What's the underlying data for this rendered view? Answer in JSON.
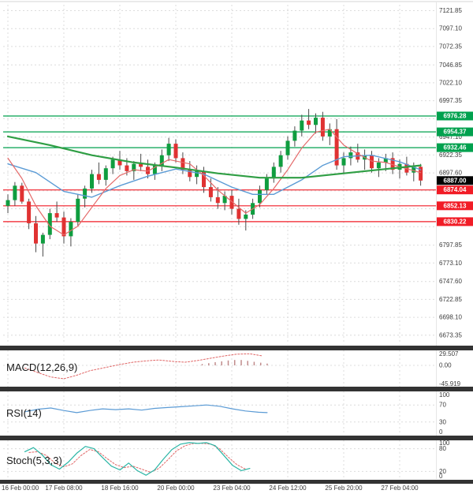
{
  "chart_data": {
    "type": "candlestick",
    "ylim": [
      6660,
      7130
    ],
    "price_ticks": [
      "7121.85",
      "7097.10",
      "7072.35",
      "7046.85",
      "7022.10",
      "6997.35",
      "6972.60",
      "6947.10",
      "6922.35",
      "6897.60",
      "6872.85",
      "6848.10",
      "6823.35",
      "6797.85",
      "6773.10",
      "6747.60",
      "6722.85",
      "6698.10",
      "6673.35"
    ],
    "x_labels": [
      "16 Feb 00:00",
      "17 Feb 08:00",
      "18 Feb 16:00",
      "20 Feb 00:00",
      "23 Feb 04:00",
      "24 Feb 12:00",
      "25 Feb 20:00",
      "27 Feb 04:00"
    ],
    "x_tick_indices": [
      0,
      8,
      16,
      24,
      32,
      40,
      48,
      56
    ],
    "levels": {
      "resistance": [
        "6976.28",
        "6954.37",
        "6932.46"
      ],
      "support": [
        "6874.04",
        "6852.13",
        "6830.22"
      ],
      "last_price": "6887.00"
    },
    "candles": [
      [
        6852,
        6868,
        6842,
        6860
      ],
      [
        6860,
        6885,
        6852,
        6880
      ],
      [
        6880,
        6884,
        6855,
        6858
      ],
      [
        6858,
        6862,
        6820,
        6828
      ],
      [
        6828,
        6838,
        6788,
        6800
      ],
      [
        6800,
        6815,
        6782,
        6812
      ],
      [
        6812,
        6848,
        6806,
        6842
      ],
      [
        6842,
        6858,
        6830,
        6836
      ],
      [
        6836,
        6844,
        6800,
        6810
      ],
      [
        6810,
        6835,
        6796,
        6830
      ],
      [
        6830,
        6868,
        6824,
        6862
      ],
      [
        6862,
        6880,
        6850,
        6876
      ],
      [
        6876,
        6902,
        6870,
        6896
      ],
      [
        6896,
        6912,
        6882,
        6888
      ],
      [
        6888,
        6908,
        6880,
        6904
      ],
      [
        6904,
        6920,
        6896,
        6916
      ],
      [
        6916,
        6928,
        6902,
        6908
      ],
      [
        6908,
        6918,
        6894,
        6900
      ],
      [
        6900,
        6914,
        6888,
        6910
      ],
      [
        6910,
        6924,
        6900,
        6906
      ],
      [
        6906,
        6916,
        6890,
        6896
      ],
      [
        6896,
        6912,
        6888,
        6908
      ],
      [
        6908,
        6930,
        6900,
        6922
      ],
      [
        6922,
        6946,
        6914,
        6938
      ],
      [
        6938,
        6944,
        6912,
        6918
      ],
      [
        6918,
        6926,
        6896,
        6902
      ],
      [
        6902,
        6914,
        6886,
        6892
      ],
      [
        6892,
        6908,
        6882,
        6900
      ],
      [
        6900,
        6906,
        6870,
        6878
      ],
      [
        6878,
        6890,
        6858,
        6864
      ],
      [
        6864,
        6878,
        6848,
        6856
      ],
      [
        6856,
        6872,
        6846,
        6866
      ],
      [
        6866,
        6874,
        6840,
        6848
      ],
      [
        6848,
        6862,
        6826,
        6834
      ],
      [
        6834,
        6846,
        6818,
        6840
      ],
      [
        6840,
        6862,
        6834,
        6856
      ],
      [
        6856,
        6880,
        6850,
        6874
      ],
      [
        6874,
        6896,
        6868,
        6890
      ],
      [
        6890,
        6912,
        6884,
        6906
      ],
      [
        6906,
        6928,
        6898,
        6922
      ],
      [
        6922,
        6948,
        6916,
        6942
      ],
      [
        6942,
        6962,
        6934,
        6956
      ],
      [
        6956,
        6978,
        6948,
        6970
      ],
      [
        6970,
        6986,
        6958,
        6964
      ],
      [
        6964,
        6980,
        6952,
        6974
      ],
      [
        6974,
        6982,
        6942,
        6948
      ],
      [
        6948,
        6966,
        6936,
        6958
      ],
      [
        6958,
        6972,
        6902,
        6908
      ],
      [
        6908,
        6926,
        6896,
        6918
      ],
      [
        6918,
        6934,
        6908,
        6926
      ],
      [
        6926,
        6938,
        6912,
        6916
      ],
      [
        6916,
        6930,
        6902,
        6922
      ],
      [
        6922,
        6928,
        6898,
        6904
      ],
      [
        6904,
        6918,
        6892,
        6912
      ],
      [
        6912,
        6924,
        6900,
        6918
      ],
      [
        6918,
        6926,
        6896,
        6902
      ],
      [
        6902,
        6916,
        6890,
        6910
      ],
      [
        6910,
        6920,
        6894,
        6898
      ],
      [
        6898,
        6912,
        6886,
        6906
      ],
      [
        6906,
        6910,
        6880,
        6887
      ]
    ],
    "overlays": {
      "ma_blue": [
        [
          0,
          6910
        ],
        [
          4,
          6898
        ],
        [
          8,
          6872
        ],
        [
          12,
          6864
        ],
        [
          16,
          6880
        ],
        [
          20,
          6893
        ],
        [
          24,
          6903
        ],
        [
          28,
          6896
        ],
        [
          32,
          6878
        ],
        [
          35,
          6868
        ],
        [
          38,
          6868
        ],
        [
          42,
          6888
        ],
        [
          45,
          6908
        ],
        [
          48,
          6920
        ],
        [
          52,
          6922
        ],
        [
          56,
          6913
        ],
        [
          59,
          6902
        ]
      ],
      "ma_red": [
        [
          0,
          6918
        ],
        [
          2,
          6890
        ],
        [
          4,
          6852
        ],
        [
          6,
          6824
        ],
        [
          8,
          6812
        ],
        [
          10,
          6824
        ],
        [
          12,
          6850
        ],
        [
          14,
          6876
        ],
        [
          16,
          6894
        ],
        [
          18,
          6902
        ],
        [
          20,
          6900
        ],
        [
          23,
          6916
        ],
        [
          26,
          6910
        ],
        [
          28,
          6894
        ],
        [
          30,
          6874
        ],
        [
          32,
          6858
        ],
        [
          34,
          6842
        ],
        [
          36,
          6854
        ],
        [
          38,
          6876
        ],
        [
          40,
          6902
        ],
        [
          42,
          6932
        ],
        [
          44,
          6954
        ],
        [
          46,
          6958
        ],
        [
          48,
          6936
        ],
        [
          50,
          6924
        ],
        [
          52,
          6914
        ],
        [
          54,
          6912
        ],
        [
          56,
          6906
        ],
        [
          59,
          6898
        ]
      ],
      "ma_green": [
        [
          0,
          6948
        ],
        [
          6,
          6936
        ],
        [
          12,
          6922
        ],
        [
          18,
          6912
        ],
        [
          24,
          6905
        ],
        [
          30,
          6897
        ],
        [
          36,
          6891
        ],
        [
          42,
          6891
        ],
        [
          48,
          6897
        ],
        [
          54,
          6903
        ],
        [
          59,
          6908
        ]
      ]
    },
    "indicators": {
      "macd": {
        "label": "MACD(12,26,9)",
        "axis_labels": [
          "29.507",
          "0.00",
          "-45.919"
        ],
        "signal": [
          [
            0.05,
            -6
          ],
          [
            0.08,
            -16
          ],
          [
            0.11,
            -26
          ],
          [
            0.14,
            -30
          ],
          [
            0.17,
            -22
          ],
          [
            0.2,
            -12
          ],
          [
            0.24,
            -4
          ],
          [
            0.27,
            2
          ],
          [
            0.3,
            7
          ],
          [
            0.33,
            10
          ],
          [
            0.36,
            12
          ],
          [
            0.39,
            9
          ],
          [
            0.42,
            7
          ],
          [
            0.45,
            11
          ],
          [
            0.48,
            16
          ],
          [
            0.51,
            21
          ],
          [
            0.54,
            25
          ],
          [
            0.57,
            26
          ],
          [
            0.6,
            21
          ]
        ],
        "histogram": [
          [
            0.46,
            3
          ],
          [
            0.475,
            5
          ],
          [
            0.49,
            7
          ],
          [
            0.505,
            9
          ],
          [
            0.52,
            11
          ],
          [
            0.535,
            12
          ],
          [
            0.55,
            12
          ],
          [
            0.565,
            10
          ],
          [
            0.58,
            8
          ],
          [
            0.595,
            6
          ],
          [
            0.61,
            4
          ]
        ]
      },
      "rsi": {
        "label": "RSI(14)",
        "axis_labels": [
          "100",
          "70",
          "30",
          "0"
        ],
        "levels": [
          70,
          30
        ],
        "line": [
          [
            0.05,
            54
          ],
          [
            0.08,
            60
          ],
          [
            0.11,
            63
          ],
          [
            0.14,
            57
          ],
          [
            0.17,
            52
          ],
          [
            0.2,
            57
          ],
          [
            0.23,
            61
          ],
          [
            0.26,
            59
          ],
          [
            0.29,
            61
          ],
          [
            0.32,
            58
          ],
          [
            0.35,
            62
          ],
          [
            0.38,
            64
          ],
          [
            0.41,
            66
          ],
          [
            0.44,
            68
          ],
          [
            0.47,
            70
          ],
          [
            0.5,
            67
          ],
          [
            0.53,
            61
          ],
          [
            0.56,
            56
          ],
          [
            0.59,
            53
          ],
          [
            0.61,
            52
          ]
        ]
      },
      "stoch": {
        "label": "Stoch(5,3,3)",
        "axis_labels": [
          "100",
          "80",
          "20",
          "0"
        ],
        "levels": [
          80,
          20
        ],
        "k_line": [
          [
            0.05,
            72
          ],
          [
            0.07,
            83
          ],
          [
            0.09,
            64
          ],
          [
            0.11,
            38
          ],
          [
            0.13,
            26
          ],
          [
            0.15,
            44
          ],
          [
            0.17,
            68
          ],
          [
            0.19,
            86
          ],
          [
            0.21,
            80
          ],
          [
            0.23,
            56
          ],
          [
            0.25,
            34
          ],
          [
            0.27,
            24
          ],
          [
            0.29,
            42
          ],
          [
            0.31,
            22
          ],
          [
            0.33,
            10
          ],
          [
            0.35,
            24
          ],
          [
            0.37,
            52
          ],
          [
            0.39,
            78
          ],
          [
            0.41,
            92
          ],
          [
            0.43,
            96
          ],
          [
            0.45,
            94
          ],
          [
            0.47,
            96
          ],
          [
            0.49,
            88
          ],
          [
            0.51,
            62
          ],
          [
            0.53,
            36
          ],
          [
            0.55,
            22
          ],
          [
            0.57,
            28
          ]
        ],
        "d_line": [
          [
            0.06,
            70
          ],
          [
            0.08,
            72
          ],
          [
            0.1,
            62
          ],
          [
            0.12,
            42
          ],
          [
            0.14,
            32
          ],
          [
            0.16,
            40
          ],
          [
            0.18,
            62
          ],
          [
            0.2,
            78
          ],
          [
            0.22,
            72
          ],
          [
            0.24,
            54
          ],
          [
            0.26,
            38
          ],
          [
            0.28,
            30
          ],
          [
            0.3,
            34
          ],
          [
            0.32,
            26
          ],
          [
            0.34,
            18
          ],
          [
            0.36,
            28
          ],
          [
            0.38,
            50
          ],
          [
            0.4,
            74
          ],
          [
            0.42,
            88
          ],
          [
            0.44,
            94
          ],
          [
            0.46,
            94
          ],
          [
            0.48,
            92
          ],
          [
            0.5,
            80
          ],
          [
            0.52,
            58
          ],
          [
            0.54,
            38
          ],
          [
            0.56,
            26
          ]
        ]
      }
    },
    "colors": {
      "up": "#0f9d3f",
      "down": "#e03232",
      "wick": "#4a4a4a",
      "resistance": "#00a14e",
      "support": "#f11c26",
      "last_badge": "#000000",
      "ma_blue": "#5b9bd5",
      "ma_red": "#e46a6a",
      "ma_green": "#2f9e44",
      "grid": "#dcdcdc",
      "separator": "#333333",
      "axis_text": "#3c3c3c",
      "macd_signal": "#e06666",
      "macd_hist": "#c08a8a",
      "rsi_line": "#5b9bd5",
      "stoch_k": "#2ab5a5",
      "stoch_d": "#e06666"
    }
  }
}
